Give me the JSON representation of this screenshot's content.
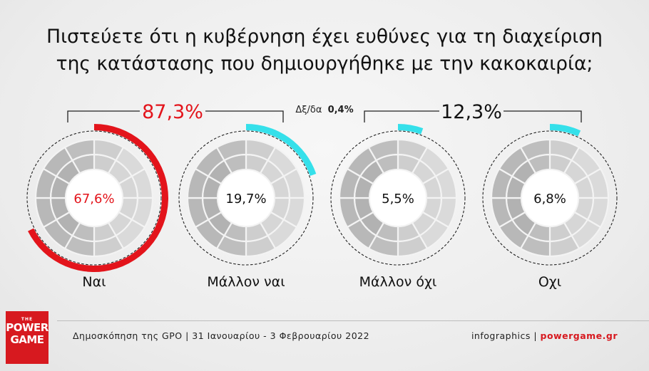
{
  "title": {
    "line1": "Πιστεύετε ότι η κυβέρνηση έχει ευθύνες για τη διαχείριση",
    "line2": "της κατάστασης που δημιουργήθηκε με την κακοκαιρία;"
  },
  "groups": {
    "yes_total": "87,3%",
    "no_total": "12,3%",
    "dk_label": "Δξ/δα",
    "dk_value": "0,4%"
  },
  "footer": {
    "source": "Δημοσκόπηση της GPO | 31 Ιανουαρίου - 3 Φεβρουαρίου 2022",
    "credit_prefix": "infographics | ",
    "credit_site": "powergame.gr"
  },
  "logo": {
    "the": "THE",
    "word1": "POWER",
    "word2": "GAME"
  },
  "colors": {
    "yes_accent": "#e3141b",
    "arc_blue": "#35e0ea",
    "text": "#111111"
  },
  "chart_data": {
    "type": "pie",
    "categories": [
      "Ναι",
      "Μάλλον ναι",
      "Μάλλον όχι",
      "Οχι"
    ],
    "values": [
      67.6,
      19.7,
      5.5,
      6.8
    ],
    "value_labels": [
      "67,6%",
      "19,7%",
      "5,5%",
      "6,8%"
    ],
    "arc_colors": [
      "#e3141b",
      "#35e0ea",
      "#35e0ea",
      "#35e0ea"
    ],
    "label_colors": [
      "#e3141b",
      "#111111",
      "#111111",
      "#111111"
    ],
    "groups": [
      {
        "label": "87,3%",
        "value": 87.3,
        "categories": [
          "Ναι",
          "Μάλλον ναι"
        ]
      },
      {
        "label": "12,3%",
        "value": 12.3,
        "categories": [
          "Μάλλον όχι",
          "Οχι"
        ]
      }
    ],
    "other": {
      "label": "Δξ/δα",
      "value": 0.4
    }
  }
}
